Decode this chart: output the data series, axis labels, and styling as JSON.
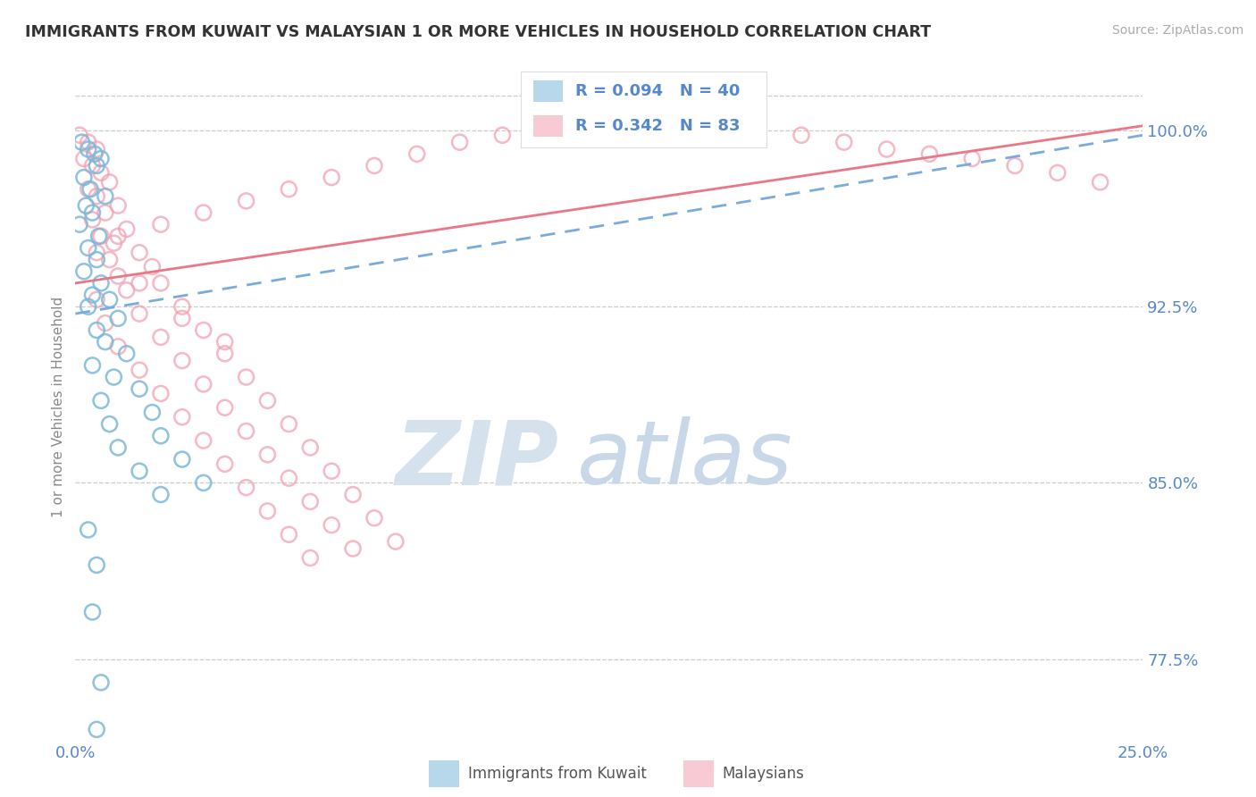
{
  "title": "IMMIGRANTS FROM KUWAIT VS MALAYSIAN 1 OR MORE VEHICLES IN HOUSEHOLD CORRELATION CHART",
  "source": "Source: ZipAtlas.com",
  "ylabel": "1 or more Vehicles in Household",
  "xmin": 0.0,
  "xmax": 25.0,
  "ymin": 74.0,
  "ymax": 102.5,
  "yticks": [
    77.5,
    85.0,
    92.5,
    100.0
  ],
  "xticklabels": [
    "0.0%",
    "25.0%"
  ],
  "yticklabels": [
    "77.5%",
    "85.0%",
    "92.5%",
    "100.0%"
  ],
  "kuwait_R": 0.094,
  "kuwait_N": 40,
  "malaysian_R": 0.342,
  "malaysian_N": 83,
  "kuwait_color": "#7ab8d9",
  "malaysian_color": "#f4a0b0",
  "kuwait_scatter": [
    [
      0.15,
      99.5
    ],
    [
      0.3,
      99.2
    ],
    [
      0.45,
      99.0
    ],
    [
      0.6,
      98.8
    ],
    [
      0.5,
      98.5
    ],
    [
      0.2,
      98.0
    ],
    [
      0.35,
      97.5
    ],
    [
      0.7,
      97.2
    ],
    [
      0.25,
      96.8
    ],
    [
      0.4,
      96.5
    ],
    [
      0.1,
      96.0
    ],
    [
      0.55,
      95.5
    ],
    [
      0.3,
      95.0
    ],
    [
      0.5,
      94.5
    ],
    [
      0.2,
      94.0
    ],
    [
      0.6,
      93.5
    ],
    [
      0.4,
      93.0
    ],
    [
      0.8,
      92.8
    ],
    [
      0.3,
      92.5
    ],
    [
      1.0,
      92.0
    ],
    [
      0.5,
      91.5
    ],
    [
      0.7,
      91.0
    ],
    [
      1.2,
      90.5
    ],
    [
      0.4,
      90.0
    ],
    [
      0.9,
      89.5
    ],
    [
      1.5,
      89.0
    ],
    [
      0.6,
      88.5
    ],
    [
      1.8,
      88.0
    ],
    [
      0.8,
      87.5
    ],
    [
      2.0,
      87.0
    ],
    [
      1.0,
      86.5
    ],
    [
      2.5,
      86.0
    ],
    [
      1.5,
      85.5
    ],
    [
      3.0,
      85.0
    ],
    [
      2.0,
      84.5
    ],
    [
      0.3,
      83.0
    ],
    [
      0.5,
      81.5
    ],
    [
      0.4,
      79.5
    ],
    [
      0.6,
      76.5
    ],
    [
      0.5,
      74.5
    ]
  ],
  "malaysian_scatter": [
    [
      0.1,
      99.8
    ],
    [
      0.3,
      99.5
    ],
    [
      0.5,
      99.2
    ],
    [
      0.2,
      98.8
    ],
    [
      0.4,
      98.5
    ],
    [
      0.6,
      98.2
    ],
    [
      0.8,
      97.8
    ],
    [
      0.3,
      97.5
    ],
    [
      0.5,
      97.2
    ],
    [
      1.0,
      96.8
    ],
    [
      0.7,
      96.5
    ],
    [
      0.4,
      96.2
    ],
    [
      1.2,
      95.8
    ],
    [
      0.6,
      95.5
    ],
    [
      0.9,
      95.2
    ],
    [
      1.5,
      94.8
    ],
    [
      0.8,
      94.5
    ],
    [
      1.8,
      94.2
    ],
    [
      1.0,
      93.8
    ],
    [
      2.0,
      93.5
    ],
    [
      1.2,
      93.2
    ],
    [
      0.5,
      92.8
    ],
    [
      2.5,
      92.5
    ],
    [
      1.5,
      92.2
    ],
    [
      0.7,
      91.8
    ],
    [
      3.0,
      91.5
    ],
    [
      2.0,
      91.2
    ],
    [
      1.0,
      90.8
    ],
    [
      3.5,
      90.5
    ],
    [
      2.5,
      90.2
    ],
    [
      1.5,
      89.8
    ],
    [
      4.0,
      89.5
    ],
    [
      3.0,
      89.2
    ],
    [
      2.0,
      88.8
    ],
    [
      4.5,
      88.5
    ],
    [
      3.5,
      88.2
    ],
    [
      2.5,
      87.8
    ],
    [
      5.0,
      87.5
    ],
    [
      4.0,
      87.2
    ],
    [
      3.0,
      86.8
    ],
    [
      5.5,
      86.5
    ],
    [
      4.5,
      86.2
    ],
    [
      3.5,
      85.8
    ],
    [
      6.0,
      85.5
    ],
    [
      5.0,
      85.2
    ],
    [
      4.0,
      84.8
    ],
    [
      6.5,
      84.5
    ],
    [
      5.5,
      84.2
    ],
    [
      4.5,
      83.8
    ],
    [
      7.0,
      83.5
    ],
    [
      6.0,
      83.2
    ],
    [
      5.0,
      82.8
    ],
    [
      7.5,
      82.5
    ],
    [
      6.5,
      82.2
    ],
    [
      5.5,
      81.8
    ],
    [
      1.0,
      95.5
    ],
    [
      2.0,
      96.0
    ],
    [
      3.0,
      96.5
    ],
    [
      4.0,
      97.0
    ],
    [
      5.0,
      97.5
    ],
    [
      6.0,
      98.0
    ],
    [
      7.0,
      98.5
    ],
    [
      8.0,
      99.0
    ],
    [
      9.0,
      99.5
    ],
    [
      10.0,
      99.8
    ],
    [
      11.0,
      100.0
    ],
    [
      12.0,
      100.2
    ],
    [
      13.0,
      100.3
    ],
    [
      14.0,
      100.2
    ],
    [
      15.0,
      100.1
    ],
    [
      16.0,
      100.0
    ],
    [
      17.0,
      99.8
    ],
    [
      18.0,
      99.5
    ],
    [
      19.0,
      99.2
    ],
    [
      20.0,
      99.0
    ],
    [
      21.0,
      98.8
    ],
    [
      22.0,
      98.5
    ],
    [
      23.0,
      98.2
    ],
    [
      24.0,
      97.8
    ],
    [
      0.5,
      94.8
    ],
    [
      1.5,
      93.5
    ],
    [
      2.5,
      92.0
    ],
    [
      3.5,
      91.0
    ]
  ],
  "background_color": "#ffffff",
  "grid_color": "#cccccc",
  "watermark_zip": "ZIP",
  "watermark_atlas": "atlas",
  "watermark_color_zip": "#d8e4ee",
  "watermark_color_atlas": "#c8d8e8"
}
